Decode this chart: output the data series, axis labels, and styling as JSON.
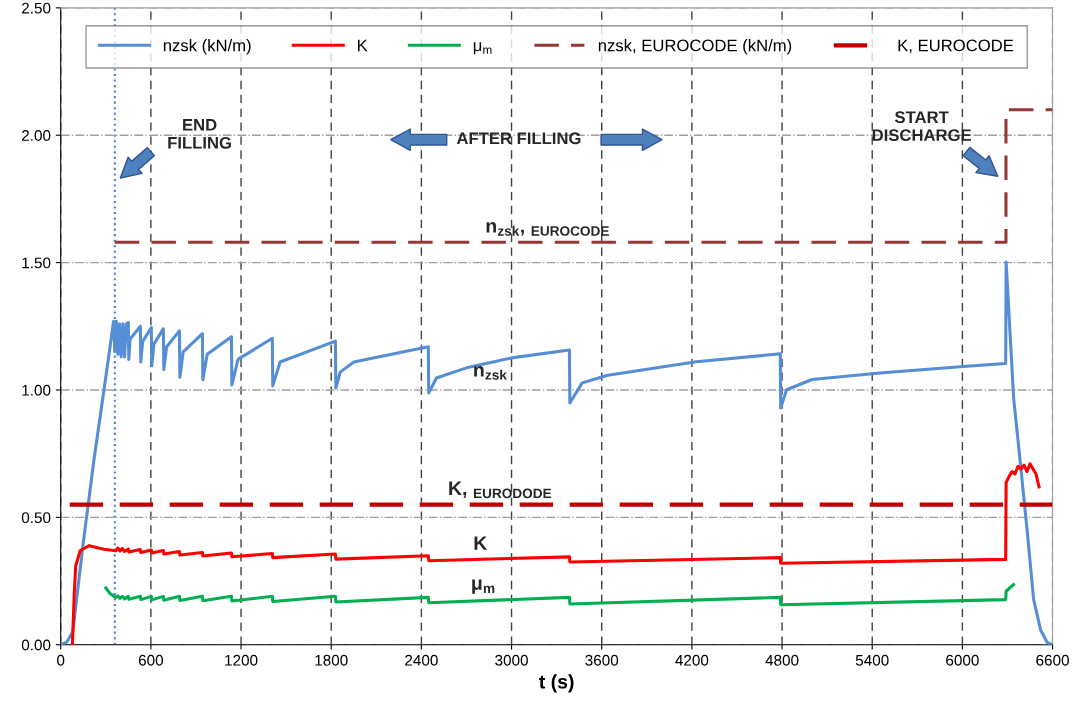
{
  "chart_data": {
    "type": "line",
    "xlabel": "t (s)",
    "xlim": [
      0,
      6600
    ],
    "xticks": [
      0,
      600,
      1200,
      1800,
      2400,
      3000,
      3600,
      4200,
      4800,
      5400,
      6000,
      6600
    ],
    "ylim": [
      0,
      2.5
    ],
    "yticks": [
      {
        "value": 0,
        "label": "0.00"
      },
      {
        "value": 0.5,
        "label": "0.50"
      },
      {
        "value": 1,
        "label": "1.00"
      },
      {
        "value": 1.5,
        "label": "1.50"
      },
      {
        "value": 2,
        "label": "2.00"
      },
      {
        "value": 2.5,
        "label": "2.50"
      }
    ],
    "grid": true,
    "legend": "top",
    "marker": "none",
    "series": [
      {
        "name": "nzsk (kN/m)",
        "color": "#558ed5",
        "line_style": "solid",
        "x": [
          0,
          40,
          80,
          150,
          220,
          300,
          352,
          360,
          370,
          380,
          392,
          402,
          414,
          425,
          437,
          450,
          453,
          462,
          530,
          533,
          545,
          603,
          606,
          620,
          683,
          686,
          705,
          790,
          793,
          815,
          943,
          946,
          975,
          1136,
          1139,
          1180,
          1408,
          1411,
          1460,
          1828,
          1831,
          1860,
          1950,
          2446,
          2449,
          2500,
          2700,
          3000,
          3385,
          3388,
          3470,
          3640,
          4230,
          4788,
          4791,
          4830,
          5000,
          5450,
          6050,
          6288,
          6291,
          6341,
          6387,
          6432,
          6474,
          6520,
          6565,
          6600
        ],
        "values": [
          0,
          0.01,
          0.05,
          0.4,
          0.72,
          1.05,
          1.27,
          1.15,
          1.27,
          1.14,
          1.26,
          1.13,
          1.26,
          1.13,
          1.26,
          1.265,
          1.12,
          1.2,
          1.25,
          1.11,
          1.19,
          1.245,
          1.095,
          1.18,
          1.24,
          1.08,
          1.17,
          1.232,
          1.05,
          1.15,
          1.221,
          1.04,
          1.14,
          1.209,
          1.02,
          1.12,
          1.203,
          1.016,
          1.11,
          1.192,
          1.008,
          1.07,
          1.11,
          1.17,
          0.988,
          1.047,
          1.087,
          1.126,
          1.157,
          0.949,
          1.028,
          1.058,
          1.111,
          1.142,
          0.929,
          1.001,
          1.041,
          1.067,
          1.094,
          1.104,
          1.502,
          0.968,
          0.705,
          0.442,
          0.178,
          0.059,
          0.008,
          0
        ]
      },
      {
        "name": "K",
        "color": "#ff0000",
        "line_style": "solid",
        "x": [
          78,
          90,
          100,
          130,
          189,
          287,
          366,
          380,
          395,
          410,
          425,
          450,
          453,
          530,
          533,
          603,
          606,
          683,
          686,
          790,
          793,
          943,
          946,
          1136,
          1139,
          1408,
          1411,
          1828,
          1831,
          2446,
          2449,
          3385,
          3388,
          4788,
          4791,
          6288,
          6291,
          6310,
          6330,
          6350,
          6370,
          6390,
          6410,
          6430,
          6450,
          6470,
          6490,
          6510
        ],
        "values": [
          0,
          0.2,
          0.31,
          0.37,
          0.389,
          0.375,
          0.369,
          0.38,
          0.368,
          0.378,
          0.366,
          0.376,
          0.364,
          0.374,
          0.362,
          0.372,
          0.36,
          0.37,
          0.356,
          0.366,
          0.352,
          0.362,
          0.348,
          0.36,
          0.345,
          0.358,
          0.342,
          0.356,
          0.336,
          0.349,
          0.33,
          0.345,
          0.325,
          0.342,
          0.32,
          0.335,
          0.636,
          0.66,
          0.68,
          0.67,
          0.7,
          0.69,
          0.705,
          0.68,
          0.71,
          0.69,
          0.67,
          0.62
        ]
      },
      {
        "name": "μ$_{m}$",
        "color": "#00b050",
        "line_style": "solid",
        "x": [
          300,
          330,
          366,
          380,
          395,
          410,
          425,
          450,
          453,
          530,
          533,
          603,
          606,
          683,
          686,
          790,
          793,
          943,
          946,
          1136,
          1139,
          1408,
          1411,
          1828,
          1831,
          2446,
          2449,
          3385,
          3388,
          4788,
          4791,
          6288,
          6291,
          6340
        ],
        "values": [
          0.223,
          0.2,
          0.185,
          0.192,
          0.182,
          0.19,
          0.18,
          0.19,
          0.178,
          0.19,
          0.177,
          0.19,
          0.176,
          0.19,
          0.175,
          0.19,
          0.174,
          0.19,
          0.173,
          0.19,
          0.172,
          0.19,
          0.17,
          0.19,
          0.168,
          0.186,
          0.165,
          0.186,
          0.16,
          0.186,
          0.157,
          0.177,
          0.21,
          0.236
        ]
      },
      {
        "name": "nzsk, EUROCODE (kN/m)",
        "color": "#953735",
        "line_style": "dashed",
        "x": [
          360,
          6290,
          6290,
          6600
        ],
        "values": [
          1.58,
          1.58,
          2.1,
          2.1
        ]
      },
      {
        "name": "K, EUROCODE",
        "color": "#c00000",
        "line_style": "dashed",
        "x": [
          60,
          6600
        ],
        "values": [
          0.55,
          0.55
        ]
      }
    ],
    "ref_lines": [
      {
        "axis": "x",
        "value": 360,
        "color": "#4a7fd0",
        "line_style": "dotted"
      }
    ],
    "annotations": [
      "END\nFILLING",
      "AFTER FILLING",
      "START\nDISCHARGE",
      "n$_{zsk}$, $_{EUROCODE}$",
      "n$_{zsk}$",
      "K, $_{EURODODE}$",
      "K",
      "μ$_{m}$"
    ]
  }
}
